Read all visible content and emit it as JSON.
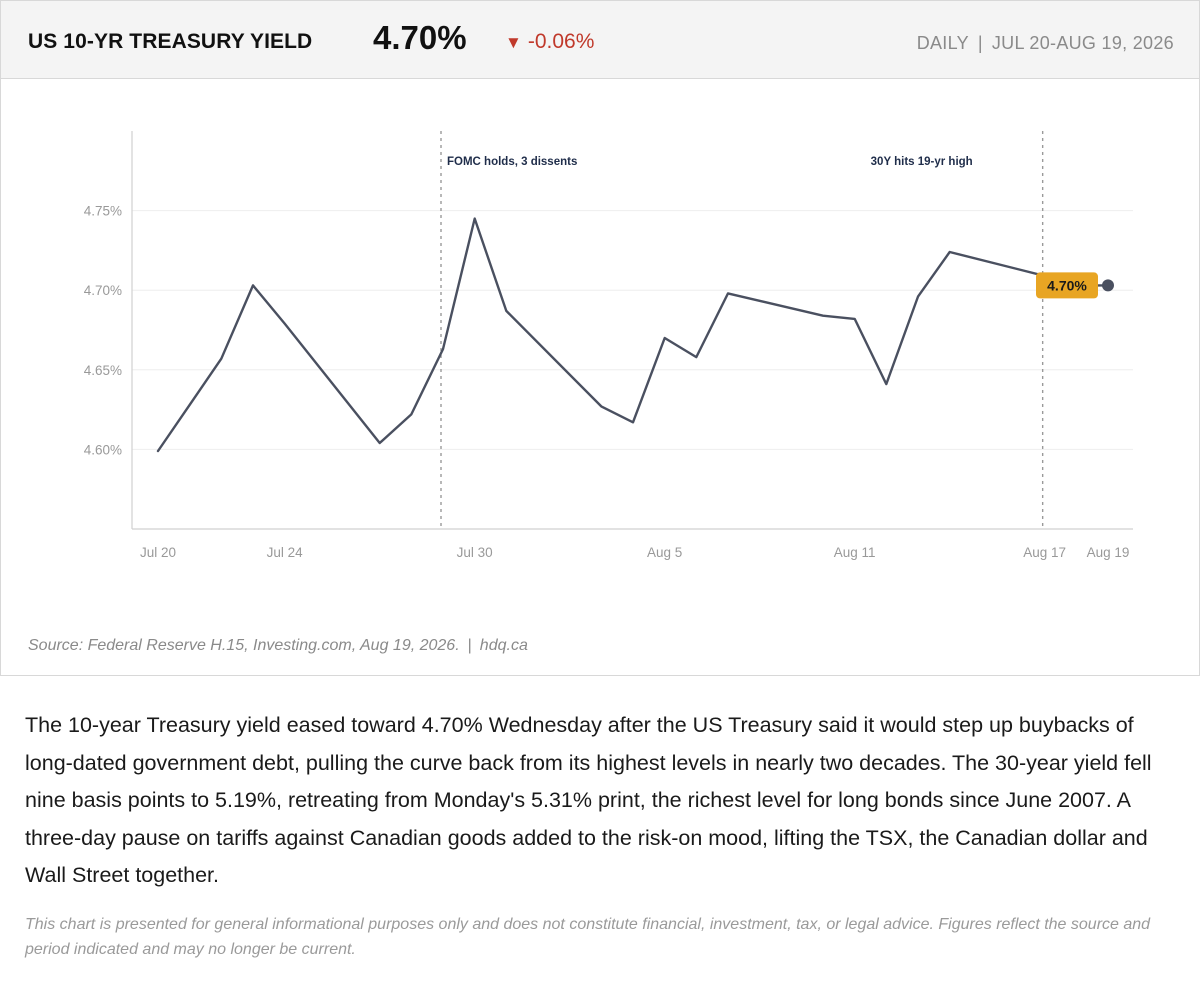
{
  "header": {
    "title": "US 10-YR TREASURY YIELD",
    "value": "4.70%",
    "change_arrow": "▼",
    "change": "-0.06%",
    "frequency": "DAILY",
    "separator": "|",
    "range": "JUL 20-AUG 19, 2026"
  },
  "colors": {
    "line": "#4a5060",
    "badge": "#e8a523",
    "negative": "#c0392b",
    "annotation_text": "#1f2d4a"
  },
  "chart_data": {
    "type": "line",
    "title": "US 10-YR TREASURY YIELD",
    "xlabel": "",
    "ylabel": "",
    "ylim": [
      4.55,
      4.8
    ],
    "grid": true,
    "x_ticks": [
      "Jul 20",
      "Jul 24",
      "Jul 30",
      "Aug 5",
      "Aug 11",
      "Aug 17",
      "Aug 19"
    ],
    "y_ticks": [
      "4.75%",
      "4.70%",
      "4.65%",
      "4.60%"
    ],
    "y_tick_values": [
      4.75,
      4.7,
      4.65,
      4.6
    ],
    "series": [
      {
        "points": [
          {
            "x": "2026-07-20",
            "y": 4.599
          },
          {
            "x": "2026-07-21",
            "y": 4.628
          },
          {
            "x": "2026-07-22",
            "y": 4.657
          },
          {
            "x": "2026-07-23",
            "y": 4.703
          },
          {
            "x": "2026-07-24",
            "y": 4.679
          },
          {
            "x": "2026-07-27",
            "y": 4.604
          },
          {
            "x": "2026-07-28",
            "y": 4.622
          },
          {
            "x": "2026-07-29",
            "y": 4.663
          },
          {
            "x": "2026-07-30",
            "y": 4.745
          },
          {
            "x": "2026-07-31",
            "y": 4.687
          },
          {
            "x": "2026-08-03",
            "y": 4.627
          },
          {
            "x": "2026-08-04",
            "y": 4.617
          },
          {
            "x": "2026-08-05",
            "y": 4.67
          },
          {
            "x": "2026-08-06",
            "y": 4.658
          },
          {
            "x": "2026-08-07",
            "y": 4.698
          },
          {
            "x": "2026-08-10",
            "y": 4.684
          },
          {
            "x": "2026-08-11",
            "y": 4.682
          },
          {
            "x": "2026-08-12",
            "y": 4.641
          },
          {
            "x": "2026-08-13",
            "y": 4.696
          },
          {
            "x": "2026-08-14",
            "y": 4.724
          },
          {
            "x": "2026-08-17",
            "y": 4.709
          },
          {
            "x": "2026-08-18",
            "y": 4.703
          }
        ]
      }
    ],
    "events": [
      {
        "x": "2026-07-29",
        "label": "FOMC holds, 3 dissents"
      },
      {
        "x": "2026-08-17",
        "label": "30Y hits 19-yr high"
      }
    ],
    "last_value_label": "4.70%"
  },
  "source": {
    "text": "Source: Federal Reserve H.15, Investing.com, Aug 19, 2026.",
    "separator": "|",
    "site": "hdq.ca"
  },
  "article": {
    "paragraph": "The 10-year Treasury yield eased toward 4.70% Wednesday after the US Treasury said it would step up buybacks of long-dated government debt, pulling the curve back from its highest levels in nearly two decades. The 30-year yield fell nine basis points to 5.19%, retreating from Monday's 5.31% print, the richest level for long bonds since June 2007. A three-day pause on tariffs against Canadian goods added to the risk-on mood, lifting the TSX, the Canadian dollar and Wall Street together."
  },
  "disclaimer": "This chart is presented for general informational purposes only and does not constitute financial, investment, tax, or legal advice. Figures reflect the source and period indicated and may no longer be current."
}
